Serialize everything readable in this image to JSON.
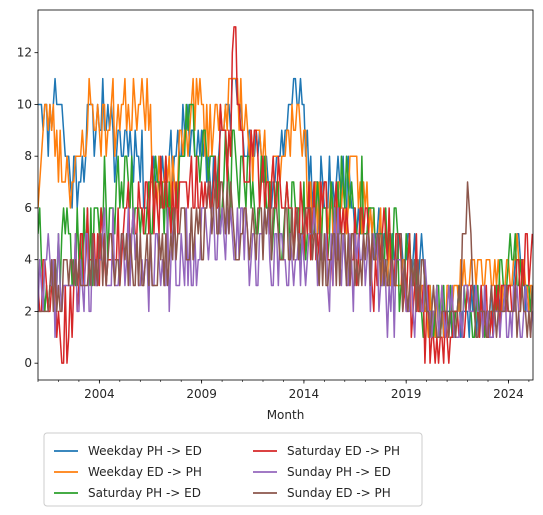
{
  "chart_data": {
    "type": "line",
    "xlabel": "Month",
    "ylabel": "",
    "x_start": "2001-01",
    "x_end": "2025-03",
    "xlim": [
      2001.0,
      2025.2
    ],
    "ylim": [
      -0.65,
      13.65
    ],
    "xticks": [
      {
        "value": 2004,
        "label": "2004"
      },
      {
        "value": 2009,
        "label": "2009"
      },
      {
        "value": 2014,
        "label": "2014"
      },
      {
        "value": 2019,
        "label": "2019"
      },
      {
        "value": 2024,
        "label": "2024"
      }
    ],
    "yticks": [
      {
        "value": 0,
        "label": "0"
      },
      {
        "value": 2,
        "label": "2"
      },
      {
        "value": 4,
        "label": "4"
      },
      {
        "value": 6,
        "label": "6"
      },
      {
        "value": 8,
        "label": "8"
      },
      {
        "value": 10,
        "label": "10"
      },
      {
        "value": 12,
        "label": "12"
      }
    ],
    "grid": false,
    "legend": {
      "placement": "below-center",
      "columns": 2
    },
    "series": [
      {
        "name": "Weekday PH -> ED",
        "color": "#1f77b4",
        "anchors": [
          [
            2001.0,
            11
          ],
          [
            2001.5,
            9
          ],
          [
            2001.9,
            11
          ],
          [
            2002.6,
            7
          ],
          [
            2003.5,
            9
          ],
          [
            2004.1,
            10
          ],
          [
            2004.7,
            8
          ],
          [
            2005.4,
            9
          ],
          [
            2006.2,
            7
          ],
          [
            2007.5,
            8
          ],
          [
            2008.5,
            9
          ],
          [
            2009.5,
            7
          ],
          [
            2010.6,
            11
          ],
          [
            2011.5,
            8
          ],
          [
            2012.5,
            7
          ],
          [
            2013.8,
            11
          ],
          [
            2014.5,
            6
          ],
          [
            2015.5,
            7
          ],
          [
            2016.0,
            7
          ],
          [
            2016.8,
            6
          ],
          [
            2017.5,
            5
          ],
          [
            2018.5,
            4
          ],
          [
            2019.5,
            4
          ],
          [
            2020.0,
            3
          ],
          [
            2020.3,
            1
          ],
          [
            2021.5,
            2
          ],
          [
            2022.5,
            2
          ],
          [
            2023.5,
            2
          ],
          [
            2024.2,
            3
          ],
          [
            2024.5,
            5
          ],
          [
            2025.0,
            2
          ]
        ],
        "min": 1,
        "max": 11,
        "amp": 1.3,
        "seed": 11
      },
      {
        "name": "Weekday ED -> PH",
        "color": "#ff7f0e",
        "anchors": [
          [
            2001.0,
            7
          ],
          [
            2001.5,
            10
          ],
          [
            2002.1,
            8
          ],
          [
            2002.9,
            7
          ],
          [
            2003.5,
            10
          ],
          [
            2004.3,
            9
          ],
          [
            2005.5,
            10
          ],
          [
            2006.1,
            11
          ],
          [
            2006.8,
            7
          ],
          [
            2007.8,
            7
          ],
          [
            2008.5,
            10
          ],
          [
            2009.5,
            9
          ],
          [
            2010.5,
            11
          ],
          [
            2011.5,
            8
          ],
          [
            2012.5,
            7
          ],
          [
            2013.5,
            10
          ],
          [
            2014.5,
            6
          ],
          [
            2015.5,
            6
          ],
          [
            2016.5,
            7
          ],
          [
            2017.5,
            5
          ],
          [
            2018.5,
            4
          ],
          [
            2019.5,
            3
          ],
          [
            2020.2,
            2
          ],
          [
            2021.0,
            2
          ],
          [
            2022.3,
            4
          ],
          [
            2023.5,
            3
          ],
          [
            2024.4,
            4
          ],
          [
            2025.0,
            3
          ]
        ],
        "min": 1,
        "max": 11,
        "amp": 1.4,
        "seed": 23
      },
      {
        "name": "Saturday PH -> ED",
        "color": "#2ca02c",
        "anchors": [
          [
            2001.0,
            6
          ],
          [
            2001.5,
            3
          ],
          [
            2002.3,
            5
          ],
          [
            2003.2,
            4
          ],
          [
            2004.2,
            6
          ],
          [
            2005.4,
            7
          ],
          [
            2006.5,
            6
          ],
          [
            2007.5,
            6
          ],
          [
            2008.6,
            10
          ],
          [
            2009.4,
            7
          ],
          [
            2010.5,
            7
          ],
          [
            2011.5,
            7
          ],
          [
            2012.5,
            6
          ],
          [
            2013.4,
            6
          ],
          [
            2014.5,
            5
          ],
          [
            2015.5,
            6
          ],
          [
            2016.2,
            7
          ],
          [
            2017.5,
            5
          ],
          [
            2018.5,
            4
          ],
          [
            2019.5,
            3
          ],
          [
            2020.2,
            2
          ],
          [
            2021.0,
            2
          ],
          [
            2022.0,
            2
          ],
          [
            2023.0,
            2
          ],
          [
            2024.4,
            4
          ],
          [
            2025.0,
            2
          ]
        ],
        "min": 1,
        "max": 11,
        "amp": 1.7,
        "seed": 37
      },
      {
        "name": "Saturday ED -> PH",
        "color": "#d62728",
        "anchors": [
          [
            2001.0,
            4
          ],
          [
            2001.8,
            3
          ],
          [
            2002.2,
            1
          ],
          [
            2003.0,
            4
          ],
          [
            2004.0,
            5
          ],
          [
            2005.0,
            5
          ],
          [
            2006.0,
            6
          ],
          [
            2007.5,
            6
          ],
          [
            2008.5,
            7
          ],
          [
            2009.5,
            7
          ],
          [
            2010.4,
            9
          ],
          [
            2010.6,
            13
          ],
          [
            2011.0,
            8
          ],
          [
            2012.0,
            7
          ],
          [
            2013.0,
            6
          ],
          [
            2014.0,
            5
          ],
          [
            2015.5,
            5
          ],
          [
            2016.5,
            5
          ],
          [
            2017.5,
            4
          ],
          [
            2018.5,
            4
          ],
          [
            2019.5,
            3
          ],
          [
            2020.5,
            0
          ],
          [
            2021.0,
            1
          ],
          [
            2022.0,
            2
          ],
          [
            2023.0,
            2
          ],
          [
            2024.4,
            3
          ],
          [
            2025.0,
            4
          ]
        ],
        "min": 0,
        "max": 13,
        "amp": 1.8,
        "seed": 53
      },
      {
        "name": "Sunday PH -> ED",
        "color": "#9467bd",
        "anchors": [
          [
            2001.0,
            3
          ],
          [
            2002.0,
            3
          ],
          [
            2003.0,
            3
          ],
          [
            2004.0,
            4
          ],
          [
            2005.0,
            4
          ],
          [
            2006.0,
            4
          ],
          [
            2007.0,
            4
          ],
          [
            2008.0,
            4
          ],
          [
            2009.0,
            5
          ],
          [
            2010.0,
            5
          ],
          [
            2011.0,
            5
          ],
          [
            2012.0,
            4
          ],
          [
            2013.0,
            4
          ],
          [
            2014.0,
            4
          ],
          [
            2015.0,
            4
          ],
          [
            2016.0,
            4
          ],
          [
            2017.0,
            4
          ],
          [
            2018.0,
            3
          ],
          [
            2019.0,
            3
          ],
          [
            2020.0,
            2
          ],
          [
            2021.0,
            2
          ],
          [
            2022.0,
            2
          ],
          [
            2023.0,
            2
          ],
          [
            2024.0,
            2
          ],
          [
            2025.0,
            2
          ]
        ],
        "min": 1,
        "max": 8,
        "amp": 1.7,
        "seed": 71
      },
      {
        "name": "Sunday ED -> PH",
        "color": "#8c564b",
        "anchors": [
          [
            2001.0,
            3
          ],
          [
            2002.0,
            3
          ],
          [
            2003.0,
            4
          ],
          [
            2004.0,
            4
          ],
          [
            2005.0,
            4
          ],
          [
            2006.0,
            4
          ],
          [
            2007.0,
            4
          ],
          [
            2008.0,
            5
          ],
          [
            2009.0,
            5
          ],
          [
            2010.0,
            6
          ],
          [
            2011.0,
            5
          ],
          [
            2012.0,
            5
          ],
          [
            2013.0,
            5
          ],
          [
            2014.0,
            5
          ],
          [
            2015.0,
            4
          ],
          [
            2016.0,
            4
          ],
          [
            2017.0,
            4
          ],
          [
            2018.0,
            4
          ],
          [
            2019.0,
            3
          ],
          [
            2020.0,
            3
          ],
          [
            2020.6,
            1
          ],
          [
            2021.5,
            2
          ],
          [
            2022.0,
            6
          ],
          [
            2022.3,
            2
          ],
          [
            2023.5,
            2
          ],
          [
            2024.5,
            2
          ],
          [
            2025.0,
            2
          ]
        ],
        "min": 1,
        "max": 8,
        "amp": 1.5,
        "seed": 97
      }
    ]
  }
}
